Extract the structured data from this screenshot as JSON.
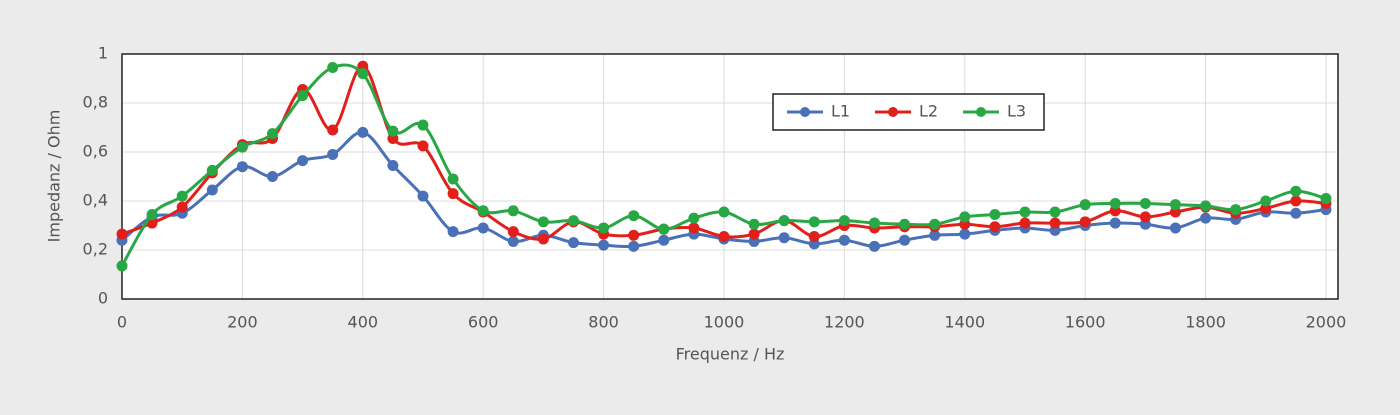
{
  "chart_data": {
    "type": "line",
    "x_label": "Frequenz / Hz",
    "y_label": "Impedanz / Ohm",
    "x": [
      0,
      50,
      100,
      150,
      200,
      250,
      300,
      350,
      400,
      450,
      500,
      550,
      600,
      650,
      700,
      750,
      800,
      850,
      900,
      950,
      1000,
      1050,
      1100,
      1150,
      1200,
      1250,
      1300,
      1350,
      1400,
      1450,
      1500,
      1550,
      1600,
      1650,
      1700,
      1750,
      1800,
      1850,
      1900,
      1950,
      2000
    ],
    "series": [
      {
        "name": "L1",
        "color": "#4a70b8",
        "values": [
          0.24,
          0.335,
          0.35,
          0.445,
          0.54,
          0.5,
          0.565,
          0.59,
          0.68,
          0.545,
          0.42,
          0.275,
          0.29,
          0.235,
          0.26,
          0.23,
          0.22,
          0.215,
          0.24,
          0.265,
          0.245,
          0.235,
          0.25,
          0.225,
          0.24,
          0.215,
          0.24,
          0.26,
          0.265,
          0.28,
          0.29,
          0.28,
          0.3,
          0.31,
          0.305,
          0.29,
          0.33,
          0.325,
          0.355,
          0.35,
          0.365
        ]
      },
      {
        "name": "L2",
        "color": "#e1201b",
        "values": [
          0.265,
          0.31,
          0.375,
          0.515,
          0.63,
          0.655,
          0.855,
          0.69,
          0.95,
          0.655,
          0.625,
          0.43,
          0.355,
          0.275,
          0.245,
          0.315,
          0.265,
          0.26,
          0.285,
          0.29,
          0.255,
          0.265,
          0.32,
          0.255,
          0.3,
          0.29,
          0.295,
          0.295,
          0.305,
          0.295,
          0.31,
          0.31,
          0.315,
          0.36,
          0.335,
          0.355,
          0.375,
          0.35,
          0.37,
          0.4,
          0.39
        ]
      },
      {
        "name": "L3",
        "color": "#28a745",
        "values": [
          0.135,
          0.345,
          0.42,
          0.525,
          0.62,
          0.675,
          0.83,
          0.945,
          0.92,
          0.685,
          0.71,
          0.49,
          0.36,
          0.36,
          0.315,
          0.32,
          0.29,
          0.34,
          0.285,
          0.33,
          0.355,
          0.305,
          0.32,
          0.315,
          0.32,
          0.31,
          0.305,
          0.305,
          0.335,
          0.345,
          0.355,
          0.355,
          0.385,
          0.39,
          0.39,
          0.385,
          0.38,
          0.365,
          0.4,
          0.44,
          0.41
        ]
      }
    ],
    "xlim": [
      0,
      2020
    ],
    "xticks": [
      0,
      200,
      400,
      600,
      800,
      1000,
      1200,
      1400,
      1600,
      1800,
      2000
    ],
    "ylim": [
      0,
      1
    ],
    "yticks": [
      0,
      {
        "value": 0.2,
        "label": "0,2"
      },
      {
        "value": 0.4,
        "label": "0,4"
      },
      {
        "value": 0.6,
        "label": "0,6"
      },
      {
        "value": 0.8,
        "label": "0,8"
      },
      1
    ],
    "grid": true,
    "smooth": true,
    "legend": "top-right"
  }
}
